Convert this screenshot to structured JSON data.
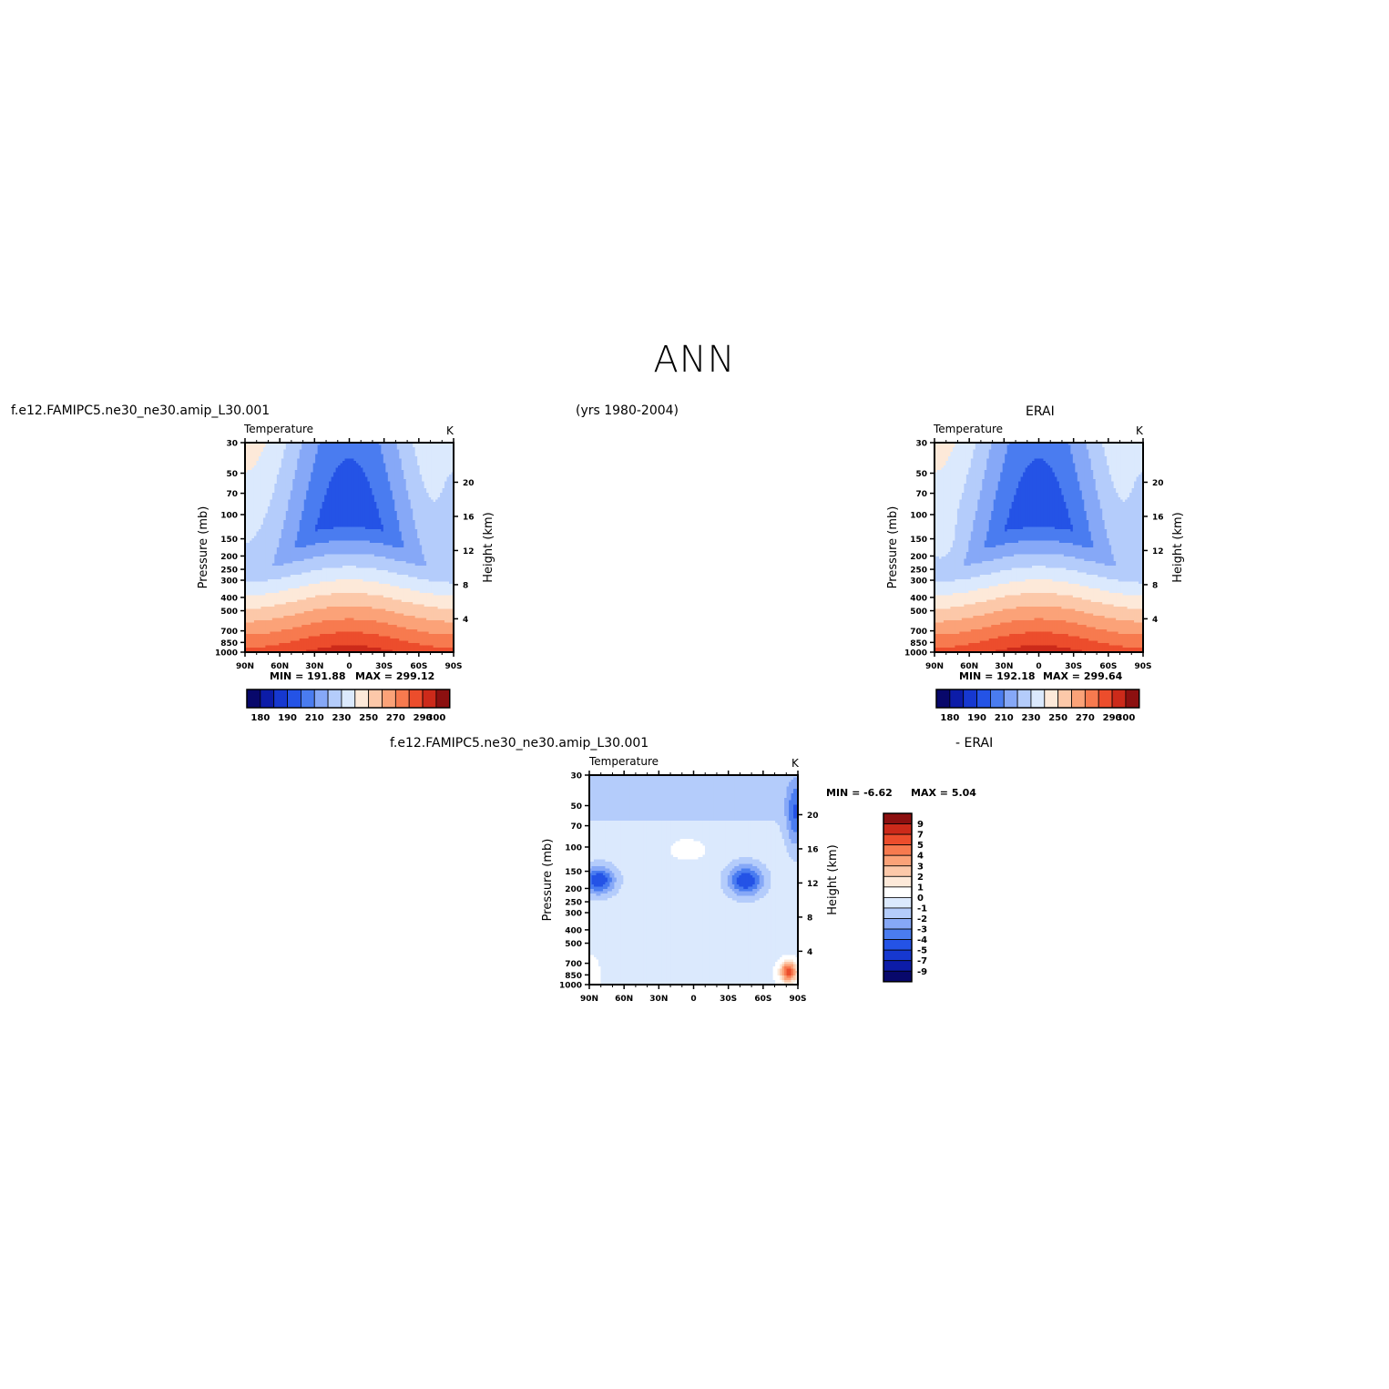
{
  "title": "ANN",
  "case_name": "f.e12.FAMIPC5.ne30_ne30.amip_L30.001",
  "years": "(yrs 1980-2004)",
  "ref_name": "ERAI",
  "diff_left": "f.e12.FAMIPC5.ne30_ne30.amip_L30.001",
  "diff_right": "- ERAI",
  "variable": "Temperature",
  "units": "K",
  "pressure_label": "Pressure (mb)",
  "height_label": "Height (km)",
  "colors": {
    "abs": [
      "#08086b",
      "#0c1ca8",
      "#1638d0",
      "#2453e6",
      "#4a7cf0",
      "#86a8f7",
      "#b4ccfb",
      "#dbe9fd",
      "#fde9d9",
      "#fcc8a9",
      "#fba278",
      "#f77a4f",
      "#ec4d2c",
      "#cc2a1a",
      "#8c1010"
    ],
    "diff": [
      "#08086b",
      "#0c1ca8",
      "#1638d0",
      "#2453e6",
      "#4a7cf0",
      "#86a8f7",
      "#b4ccfb",
      "#dbe9fd",
      "#ffffff",
      "#fde9d9",
      "#fcc8a9",
      "#fba278",
      "#f77a4f",
      "#ec4d2c",
      "#cc2a1a",
      "#8c1010"
    ]
  },
  "chart_data": [
    {
      "type": "heatmap",
      "name": "model",
      "title": "Temperature",
      "units": "K",
      "xlabel": "",
      "ylabel": "Pressure (mb)",
      "y2label": "Height (km)",
      "x_ticks": [
        "90N",
        "60N",
        "30N",
        "0",
        "30S",
        "60S",
        "90S"
      ],
      "y_ticks": [
        30,
        50,
        70,
        100,
        150,
        200,
        250,
        300,
        400,
        500,
        700,
        850,
        1000
      ],
      "y2_ticks": [
        4,
        8,
        12,
        16,
        20
      ],
      "min_text": "MIN = 191.88",
      "max_text": "MAX = 299.12",
      "min": 191.88,
      "max": 299.12,
      "levels": [
        175,
        180,
        185,
        190,
        200,
        210,
        220,
        230,
        240,
        250,
        260,
        270,
        280,
        290,
        300
      ],
      "colorbar_labels": [
        "180",
        "190",
        "210",
        "230",
        "250",
        "270",
        "290",
        "300"
      ]
    },
    {
      "type": "heatmap",
      "name": "obs",
      "title": "Temperature",
      "units": "K",
      "xlabel": "",
      "ylabel": "Pressure (mb)",
      "y2label": "Height (km)",
      "x_ticks": [
        "90N",
        "60N",
        "30N",
        "0",
        "30S",
        "60S",
        "90S"
      ],
      "y_ticks": [
        30,
        50,
        70,
        100,
        150,
        200,
        250,
        300,
        400,
        500,
        700,
        850,
        1000
      ],
      "y2_ticks": [
        4,
        8,
        12,
        16,
        20
      ],
      "min_text": "MIN = 192.18",
      "max_text": "MAX = 299.64",
      "min": 192.18,
      "max": 299.64,
      "levels": [
        175,
        180,
        185,
        190,
        200,
        210,
        220,
        230,
        240,
        250,
        260,
        270,
        280,
        290,
        300
      ],
      "colorbar_labels": [
        "180",
        "190",
        "210",
        "230",
        "250",
        "270",
        "290",
        "300"
      ]
    },
    {
      "type": "heatmap",
      "name": "difference",
      "title": "Temperature",
      "units": "K",
      "xlabel": "",
      "ylabel": "Pressure (mb)",
      "y2label": "Height (km)",
      "x_ticks": [
        "90N",
        "60N",
        "30N",
        "0",
        "30S",
        "60S",
        "90S"
      ],
      "y_ticks": [
        30,
        50,
        70,
        100,
        150,
        200,
        250,
        300,
        400,
        500,
        700,
        850,
        1000
      ],
      "y2_ticks": [
        4,
        8,
        12,
        16,
        20
      ],
      "min_text": "MIN = -6.62",
      "max_text": "MAX = 5.04",
      "min": -6.62,
      "max": 5.04,
      "levels": [
        -9,
        -7,
        -5,
        -4,
        -3,
        -2,
        -1,
        0,
        1,
        2,
        3,
        4,
        5,
        7,
        9
      ],
      "colorbar_labels": [
        "9",
        "7",
        "5",
        "4",
        "3",
        "2",
        "1",
        "0",
        "-1",
        "-2",
        "-3",
        "-4",
        "-5",
        "-7",
        "-9"
      ]
    }
  ]
}
